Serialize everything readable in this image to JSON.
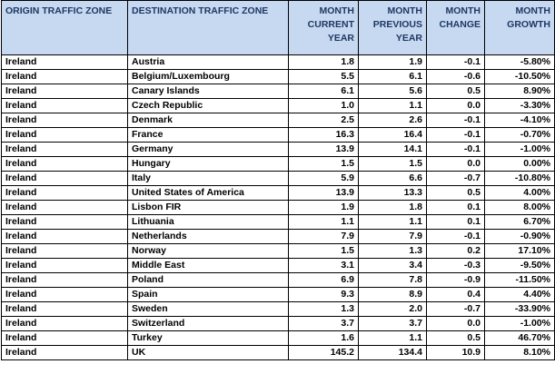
{
  "headers": [
    "ORIGIN TRAFFIC ZONE",
    "DESTINATION TRAFFIC ZONE",
    "MONTH CURRENT YEAR",
    "MONTH PREVIOUS YEAR",
    "MONTH CHANGE",
    "MONTH GROWTH"
  ],
  "rows": [
    [
      "Ireland",
      "Austria",
      "1.8",
      "1.9",
      "-0.1",
      "-5.80%"
    ],
    [
      "Ireland",
      "Belgium/Luxembourg",
      "5.5",
      "6.1",
      "-0.6",
      "-10.50%"
    ],
    [
      "Ireland",
      "Canary Islands",
      "6.1",
      "5.6",
      "0.5",
      "8.90%"
    ],
    [
      "Ireland",
      "Czech Republic",
      "1.0",
      "1.1",
      "0.0",
      "-3.30%"
    ],
    [
      "Ireland",
      "Denmark",
      "2.5",
      "2.6",
      "-0.1",
      "-4.10%"
    ],
    [
      "Ireland",
      "France",
      "16.3",
      "16.4",
      "-0.1",
      "-0.70%"
    ],
    [
      "Ireland",
      "Germany",
      "13.9",
      "14.1",
      "-0.1",
      "-1.00%"
    ],
    [
      "Ireland",
      "Hungary",
      "1.5",
      "1.5",
      "0.0",
      "0.00%"
    ],
    [
      "Ireland",
      "Italy",
      "5.9",
      "6.6",
      "-0.7",
      "-10.80%"
    ],
    [
      "Ireland",
      "United States of America",
      "13.9",
      "13.3",
      "0.5",
      "4.00%"
    ],
    [
      "Ireland",
      "Lisbon FIR",
      "1.9",
      "1.8",
      "0.1",
      "8.00%"
    ],
    [
      "Ireland",
      "Lithuania",
      "1.1",
      "1.1",
      "0.1",
      "6.70%"
    ],
    [
      "Ireland",
      "Netherlands",
      "7.9",
      "7.9",
      "-0.1",
      "-0.90%"
    ],
    [
      "Ireland",
      "Norway",
      "1.5",
      "1.3",
      "0.2",
      "17.10%"
    ],
    [
      "Ireland",
      "Middle East",
      "3.1",
      "3.4",
      "-0.3",
      "-9.50%"
    ],
    [
      "Ireland",
      "Poland",
      "6.9",
      "7.8",
      "-0.9",
      "-11.50%"
    ],
    [
      "Ireland",
      "Spain",
      "9.3",
      "8.9",
      "0.4",
      "4.40%"
    ],
    [
      "Ireland",
      "Sweden",
      "1.3",
      "2.0",
      "-0.7",
      "-33.90%"
    ],
    [
      "Ireland",
      "Switzerland",
      "3.7",
      "3.7",
      "0.0",
      "-1.00%"
    ],
    [
      "Ireland",
      "Turkey",
      "1.6",
      "1.1",
      "0.5",
      "46.70%"
    ],
    [
      "Ireland",
      "UK",
      "145.2",
      "134.4",
      "10.9",
      "8.10%"
    ]
  ]
}
